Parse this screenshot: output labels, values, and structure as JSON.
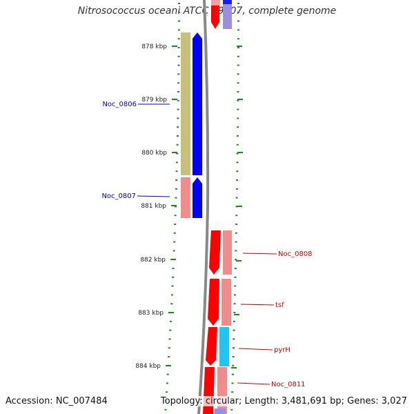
{
  "header": {
    "title": "Nitrosococcus oceani ATCC 19707, complete genome"
  },
  "footer": {
    "accession": "Accession: NC_007484",
    "summary": "Topology: circular; Length: 3,481,691 bp; Genes: 3,027"
  },
  "ruler": {
    "ticks": [
      {
        "kbp": 878,
        "label": "878 kbp"
      },
      {
        "kbp": 879,
        "label": "879 kbp"
      },
      {
        "kbp": 880,
        "label": "880 kbp"
      },
      {
        "kbp": 881,
        "label": "881 kbp"
      },
      {
        "kbp": 882,
        "label": "882 kbp"
      },
      {
        "kbp": 883,
        "label": "883 kbp"
      },
      {
        "kbp": 884,
        "label": "884 kbp"
      }
    ]
  },
  "genes": {
    "reverse_strand": [
      {
        "label": "Noc_0806",
        "color": "#0000cc"
      },
      {
        "label": "Noc_0807",
        "color": "#0000cc"
      }
    ],
    "forward_strand": [
      {
        "label": "Noc_0808",
        "color": "#cc0000"
      },
      {
        "label": "tsf",
        "color": "#cc0000"
      },
      {
        "label": "pyrH",
        "color": "#cc0000"
      },
      {
        "label": "Noc_0811",
        "color": "#cc0000"
      }
    ]
  },
  "colors": {
    "forward_cds": "#ff0000",
    "reverse_cds": "#0000ff",
    "cog_khaki": "#c8bf7a",
    "cog_pink": "#f08c8c",
    "cog_cyan": "#22c4f2",
    "cog_lavender": "#9b8ee0",
    "backbone": "#888888",
    "gc_dots": "#1a8a1a"
  }
}
